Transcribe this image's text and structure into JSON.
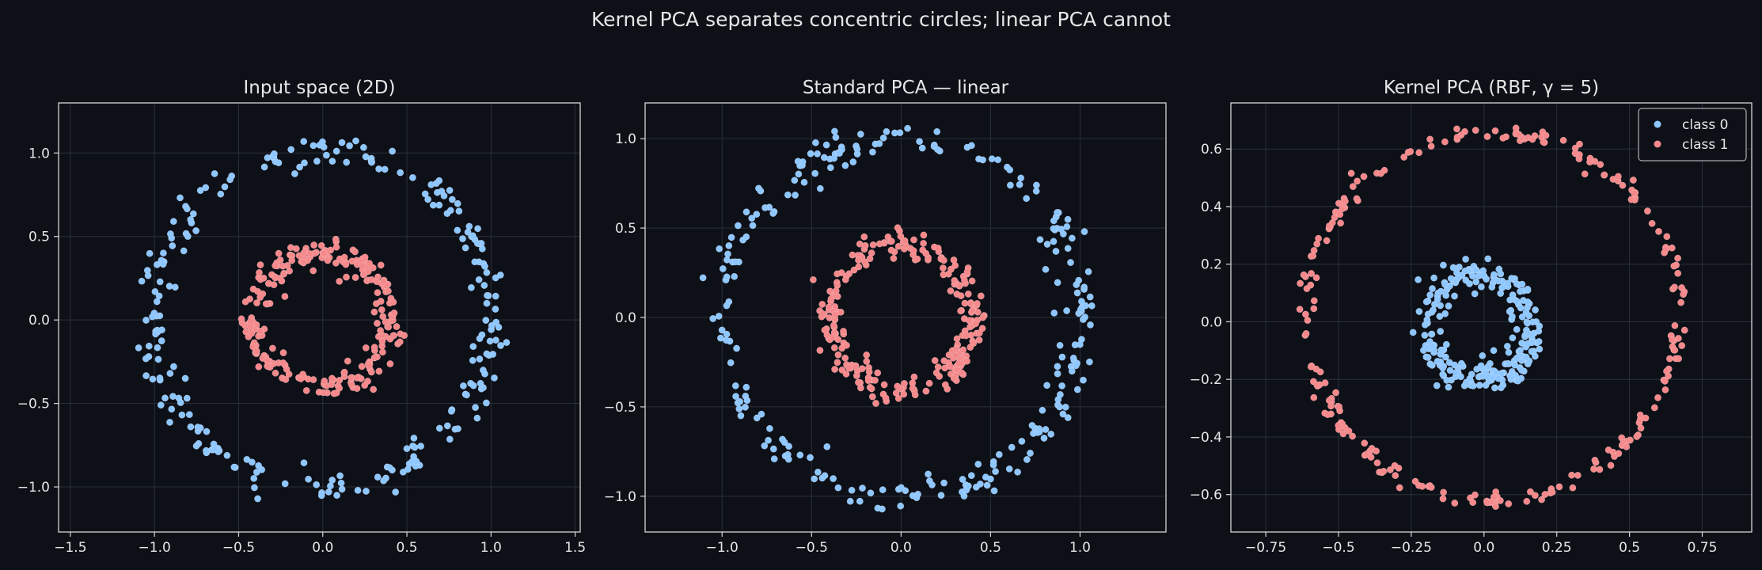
{
  "figure": {
    "suptitle": "Kernel PCA separates concentric circles; linear PCA cannot",
    "background": "#0d1017",
    "text_color": "#e6e6e6",
    "grid_color": "#2a2f3a",
    "class0_color": "#8ec6ff",
    "class1_color": "#f4888a"
  },
  "chart_data": [
    {
      "type": "scatter",
      "title": "Input space (2D)",
      "xlim": [
        -1.57,
        1.53
      ],
      "ylim": [
        -1.27,
        1.3
      ],
      "xticks": [
        -1.5,
        -1.0,
        -0.5,
        0.0,
        0.5,
        1.0,
        1.5
      ],
      "yticks": [
        -1.0,
        -0.5,
        0.0,
        0.5,
        1.0
      ],
      "grid": true,
      "series": [
        {
          "shape": "ring",
          "center": [
            0,
            0
          ],
          "radius": 1.0,
          "noise": 0.05,
          "count": 250
        },
        {
          "shape": "ring",
          "center": [
            0,
            0
          ],
          "radius": 0.4,
          "noise": 0.04,
          "count": 250
        }
      ]
    },
    {
      "type": "scatter",
      "title": "Standard PCA — linear",
      "xlim": [
        -1.43,
        1.48
      ],
      "ylim": [
        -1.2,
        1.2
      ],
      "xticks": [
        -1.0,
        -0.5,
        0.0,
        0.5,
        1.0
      ],
      "yticks": [
        -1.0,
        -0.5,
        0.0,
        0.5,
        1.0
      ],
      "grid": true,
      "series": [
        {
          "shape": "ring",
          "center": [
            0,
            0
          ],
          "radius": 1.0,
          "noise": 0.05,
          "count": 250
        },
        {
          "shape": "ring",
          "center": [
            0,
            0
          ],
          "radius": 0.4,
          "noise": 0.04,
          "count": 250
        }
      ]
    },
    {
      "type": "scatter",
      "title": "Kernel PCA (RBF, γ = 5)",
      "xlim": [
        -0.87,
        0.92
      ],
      "ylim": [
        -0.73,
        0.76
      ],
      "xticks": [
        -0.75,
        -0.5,
        -0.25,
        0.0,
        0.25,
        0.5,
        0.75
      ],
      "yticks": [
        -0.6,
        -0.4,
        -0.2,
        0.0,
        0.2,
        0.4,
        0.6
      ],
      "grid": true,
      "legend": {
        "placement": "top-right",
        "entries": [
          "class 0",
          "class 1"
        ]
      },
      "series": [
        {
          "name": "class 0",
          "shape": "ring",
          "center": [
            -0.02,
            -0.02
          ],
          "radius": 0.18,
          "noise": 0.03,
          "count": 250
        },
        {
          "name": "class 1",
          "shape": "ring",
          "center": [
            0.03,
            0.02
          ],
          "radius": 0.64,
          "noise": 0.015,
          "count": 250
        }
      ]
    }
  ]
}
